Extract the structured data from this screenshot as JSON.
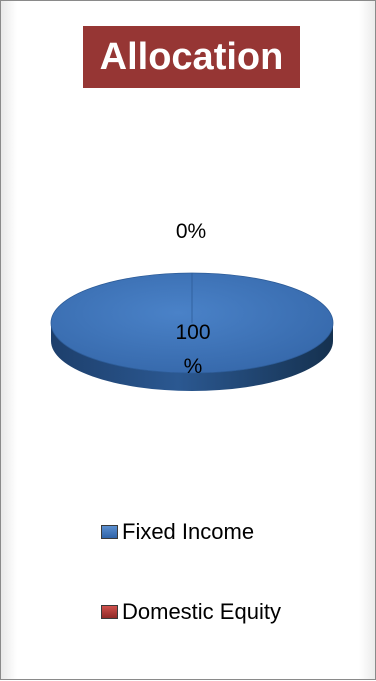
{
  "chart_data": {
    "type": "pie",
    "title": "Allocation",
    "slices": [
      {
        "label": "Fixed Income",
        "value": 100,
        "data_label": "100%",
        "color": "#3E72B8"
      },
      {
        "label": "Domestic Equity",
        "value": 0,
        "data_label": "0%",
        "color": "#B33A36"
      }
    ],
    "legend_position": "bottom",
    "style": "3d-pie"
  }
}
